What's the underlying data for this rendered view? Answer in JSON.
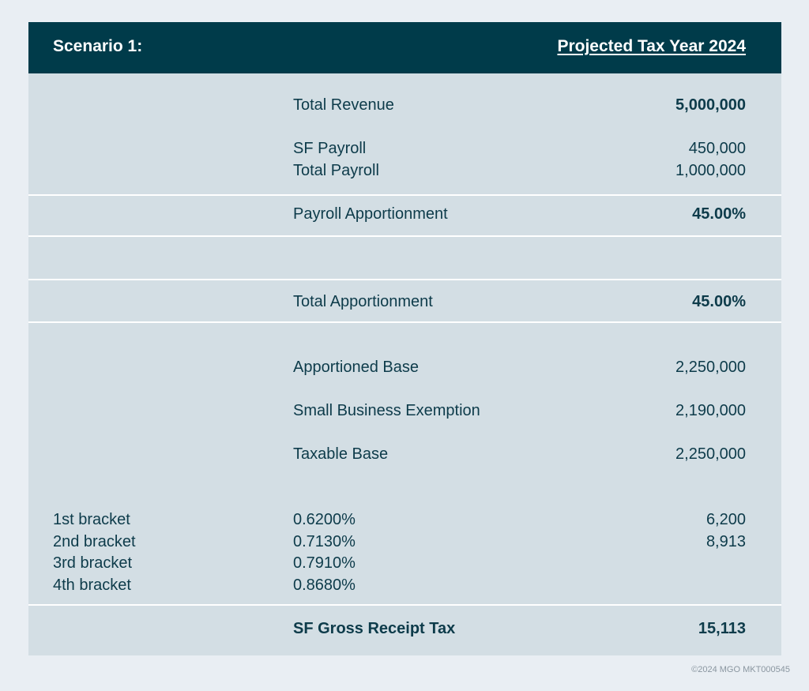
{
  "header": {
    "scenario": "Scenario 1:",
    "projected": "Projected Tax Year 2024"
  },
  "rows": {
    "total_revenue": {
      "label": "Total Revenue",
      "value": "5,000,000"
    },
    "sf_payroll": {
      "label": "SF Payroll",
      "value": "450,000"
    },
    "total_payroll": {
      "label": "Total Payroll",
      "value": "1,000,000"
    },
    "payroll_apportionment": {
      "label": "Payroll Apportionment",
      "value": "45.00%"
    },
    "total_apportionment": {
      "label": "Total Apportionment",
      "value": "45.00%"
    },
    "apportioned_base": {
      "label": "Apportioned Base",
      "value": "2,250,000"
    },
    "small_business_exemption": {
      "label": "Small Business Exemption",
      "value": "2,190,000"
    },
    "taxable_base": {
      "label": "Taxable Base",
      "value": "2,250,000"
    }
  },
  "brackets": [
    {
      "name": "1st bracket",
      "rate": "0.6200%",
      "amount": "6,200"
    },
    {
      "name": "2nd bracket",
      "rate": "0.7130%",
      "amount": "8,913"
    },
    {
      "name": "3rd bracket",
      "rate": "0.7910%",
      "amount": ""
    },
    {
      "name": "4th bracket",
      "rate": "0.8680%",
      "amount": ""
    }
  ],
  "total": {
    "label": "SF Gross Receipt Tax",
    "value": "15,113"
  },
  "footer": "©2024 MGO  MKT000545"
}
